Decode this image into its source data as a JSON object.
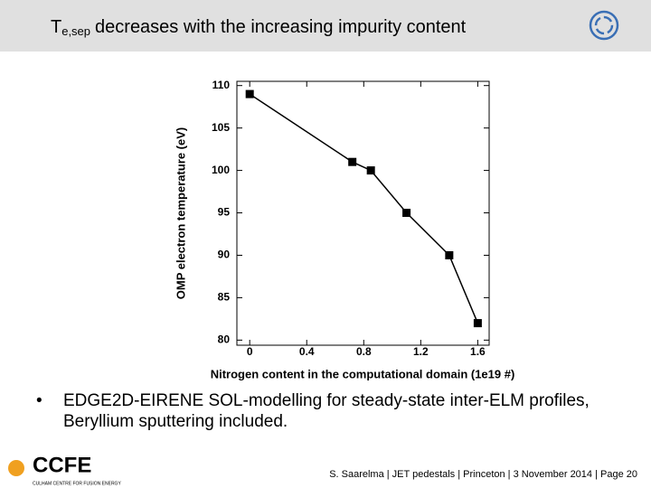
{
  "header": {
    "symbol": "T",
    "subscript": "e,sep",
    "text": "decreases with the increasing impurity content"
  },
  "chart_data": {
    "type": "line",
    "xlabel": "Nitrogen content in the computational domain (1e19 #)",
    "ylabel": "OMP electron temperature (eV)",
    "x": [
      0,
      0.72,
      0.85,
      1.1,
      1.4,
      1.6
    ],
    "series": [
      {
        "values": [
          109,
          101,
          100,
          95,
          90,
          82
        ],
        "color": "#000000"
      }
    ],
    "xlim": [
      -0.09,
      1.68
    ],
    "xticks": [
      0,
      0.4,
      0.8,
      1.2,
      1.6
    ],
    "ylim": [
      79.4,
      110.5
    ],
    "yticks": [
      80,
      85,
      90,
      95,
      100,
      105,
      110
    ],
    "marker": "square"
  },
  "bullets": [
    "EDGE2D-EIRENE SOL-modelling for steady-state inter-ELM profiles, Beryllium sputtering included."
  ],
  "footer": {
    "logo": "CCFE",
    "logo_sub": "CULHAM CENTRE FOR FUSION ENERGY",
    "text": "S. Saarelma | JET pedestals | Princeton | 3 November 2014 | Page 20"
  }
}
